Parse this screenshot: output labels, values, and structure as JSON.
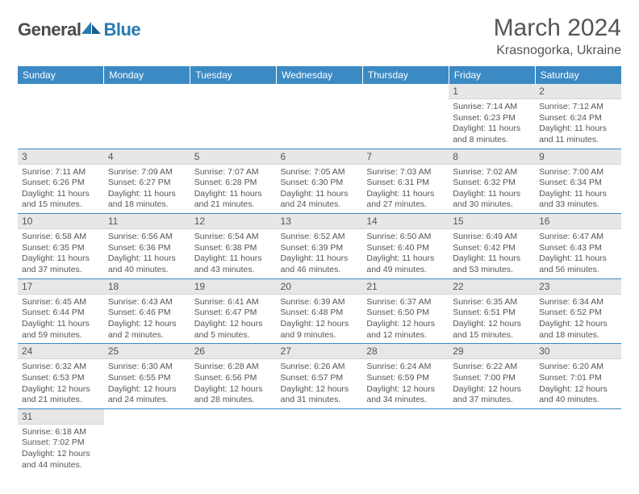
{
  "brand": {
    "name_a": "General",
    "name_b": "Blue"
  },
  "title": "March 2024",
  "location": "Krasnogorka, Ukraine",
  "colors": {
    "header_bg": "#3b8ac4",
    "header_text": "#ffffff",
    "daynum_bg": "#e7e7e7",
    "text": "#555555",
    "rule": "#3b8ac4"
  },
  "day_names": [
    "Sunday",
    "Monday",
    "Tuesday",
    "Wednesday",
    "Thursday",
    "Friday",
    "Saturday"
  ],
  "weeks": [
    [
      {
        "n": "",
        "sr": "",
        "ss": "",
        "dl": ""
      },
      {
        "n": "",
        "sr": "",
        "ss": "",
        "dl": ""
      },
      {
        "n": "",
        "sr": "",
        "ss": "",
        "dl": ""
      },
      {
        "n": "",
        "sr": "",
        "ss": "",
        "dl": ""
      },
      {
        "n": "",
        "sr": "",
        "ss": "",
        "dl": ""
      },
      {
        "n": "1",
        "sr": "Sunrise: 7:14 AM",
        "ss": "Sunset: 6:23 PM",
        "dl": "Daylight: 11 hours and 8 minutes."
      },
      {
        "n": "2",
        "sr": "Sunrise: 7:12 AM",
        "ss": "Sunset: 6:24 PM",
        "dl": "Daylight: 11 hours and 11 minutes."
      }
    ],
    [
      {
        "n": "3",
        "sr": "Sunrise: 7:11 AM",
        "ss": "Sunset: 6:26 PM",
        "dl": "Daylight: 11 hours and 15 minutes."
      },
      {
        "n": "4",
        "sr": "Sunrise: 7:09 AM",
        "ss": "Sunset: 6:27 PM",
        "dl": "Daylight: 11 hours and 18 minutes."
      },
      {
        "n": "5",
        "sr": "Sunrise: 7:07 AM",
        "ss": "Sunset: 6:28 PM",
        "dl": "Daylight: 11 hours and 21 minutes."
      },
      {
        "n": "6",
        "sr": "Sunrise: 7:05 AM",
        "ss": "Sunset: 6:30 PM",
        "dl": "Daylight: 11 hours and 24 minutes."
      },
      {
        "n": "7",
        "sr": "Sunrise: 7:03 AM",
        "ss": "Sunset: 6:31 PM",
        "dl": "Daylight: 11 hours and 27 minutes."
      },
      {
        "n": "8",
        "sr": "Sunrise: 7:02 AM",
        "ss": "Sunset: 6:32 PM",
        "dl": "Daylight: 11 hours and 30 minutes."
      },
      {
        "n": "9",
        "sr": "Sunrise: 7:00 AM",
        "ss": "Sunset: 6:34 PM",
        "dl": "Daylight: 11 hours and 33 minutes."
      }
    ],
    [
      {
        "n": "10",
        "sr": "Sunrise: 6:58 AM",
        "ss": "Sunset: 6:35 PM",
        "dl": "Daylight: 11 hours and 37 minutes."
      },
      {
        "n": "11",
        "sr": "Sunrise: 6:56 AM",
        "ss": "Sunset: 6:36 PM",
        "dl": "Daylight: 11 hours and 40 minutes."
      },
      {
        "n": "12",
        "sr": "Sunrise: 6:54 AM",
        "ss": "Sunset: 6:38 PM",
        "dl": "Daylight: 11 hours and 43 minutes."
      },
      {
        "n": "13",
        "sr": "Sunrise: 6:52 AM",
        "ss": "Sunset: 6:39 PM",
        "dl": "Daylight: 11 hours and 46 minutes."
      },
      {
        "n": "14",
        "sr": "Sunrise: 6:50 AM",
        "ss": "Sunset: 6:40 PM",
        "dl": "Daylight: 11 hours and 49 minutes."
      },
      {
        "n": "15",
        "sr": "Sunrise: 6:49 AM",
        "ss": "Sunset: 6:42 PM",
        "dl": "Daylight: 11 hours and 53 minutes."
      },
      {
        "n": "16",
        "sr": "Sunrise: 6:47 AM",
        "ss": "Sunset: 6:43 PM",
        "dl": "Daylight: 11 hours and 56 minutes."
      }
    ],
    [
      {
        "n": "17",
        "sr": "Sunrise: 6:45 AM",
        "ss": "Sunset: 6:44 PM",
        "dl": "Daylight: 11 hours and 59 minutes."
      },
      {
        "n": "18",
        "sr": "Sunrise: 6:43 AM",
        "ss": "Sunset: 6:46 PM",
        "dl": "Daylight: 12 hours and 2 minutes."
      },
      {
        "n": "19",
        "sr": "Sunrise: 6:41 AM",
        "ss": "Sunset: 6:47 PM",
        "dl": "Daylight: 12 hours and 5 minutes."
      },
      {
        "n": "20",
        "sr": "Sunrise: 6:39 AM",
        "ss": "Sunset: 6:48 PM",
        "dl": "Daylight: 12 hours and 9 minutes."
      },
      {
        "n": "21",
        "sr": "Sunrise: 6:37 AM",
        "ss": "Sunset: 6:50 PM",
        "dl": "Daylight: 12 hours and 12 minutes."
      },
      {
        "n": "22",
        "sr": "Sunrise: 6:35 AM",
        "ss": "Sunset: 6:51 PM",
        "dl": "Daylight: 12 hours and 15 minutes."
      },
      {
        "n": "23",
        "sr": "Sunrise: 6:34 AM",
        "ss": "Sunset: 6:52 PM",
        "dl": "Daylight: 12 hours and 18 minutes."
      }
    ],
    [
      {
        "n": "24",
        "sr": "Sunrise: 6:32 AM",
        "ss": "Sunset: 6:53 PM",
        "dl": "Daylight: 12 hours and 21 minutes."
      },
      {
        "n": "25",
        "sr": "Sunrise: 6:30 AM",
        "ss": "Sunset: 6:55 PM",
        "dl": "Daylight: 12 hours and 24 minutes."
      },
      {
        "n": "26",
        "sr": "Sunrise: 6:28 AM",
        "ss": "Sunset: 6:56 PM",
        "dl": "Daylight: 12 hours and 28 minutes."
      },
      {
        "n": "27",
        "sr": "Sunrise: 6:26 AM",
        "ss": "Sunset: 6:57 PM",
        "dl": "Daylight: 12 hours and 31 minutes."
      },
      {
        "n": "28",
        "sr": "Sunrise: 6:24 AM",
        "ss": "Sunset: 6:59 PM",
        "dl": "Daylight: 12 hours and 34 minutes."
      },
      {
        "n": "29",
        "sr": "Sunrise: 6:22 AM",
        "ss": "Sunset: 7:00 PM",
        "dl": "Daylight: 12 hours and 37 minutes."
      },
      {
        "n": "30",
        "sr": "Sunrise: 6:20 AM",
        "ss": "Sunset: 7:01 PM",
        "dl": "Daylight: 12 hours and 40 minutes."
      }
    ],
    [
      {
        "n": "31",
        "sr": "Sunrise: 6:18 AM",
        "ss": "Sunset: 7:02 PM",
        "dl": "Daylight: 12 hours and 44 minutes."
      },
      {
        "n": "",
        "sr": "",
        "ss": "",
        "dl": ""
      },
      {
        "n": "",
        "sr": "",
        "ss": "",
        "dl": ""
      },
      {
        "n": "",
        "sr": "",
        "ss": "",
        "dl": ""
      },
      {
        "n": "",
        "sr": "",
        "ss": "",
        "dl": ""
      },
      {
        "n": "",
        "sr": "",
        "ss": "",
        "dl": ""
      },
      {
        "n": "",
        "sr": "",
        "ss": "",
        "dl": ""
      }
    ]
  ]
}
